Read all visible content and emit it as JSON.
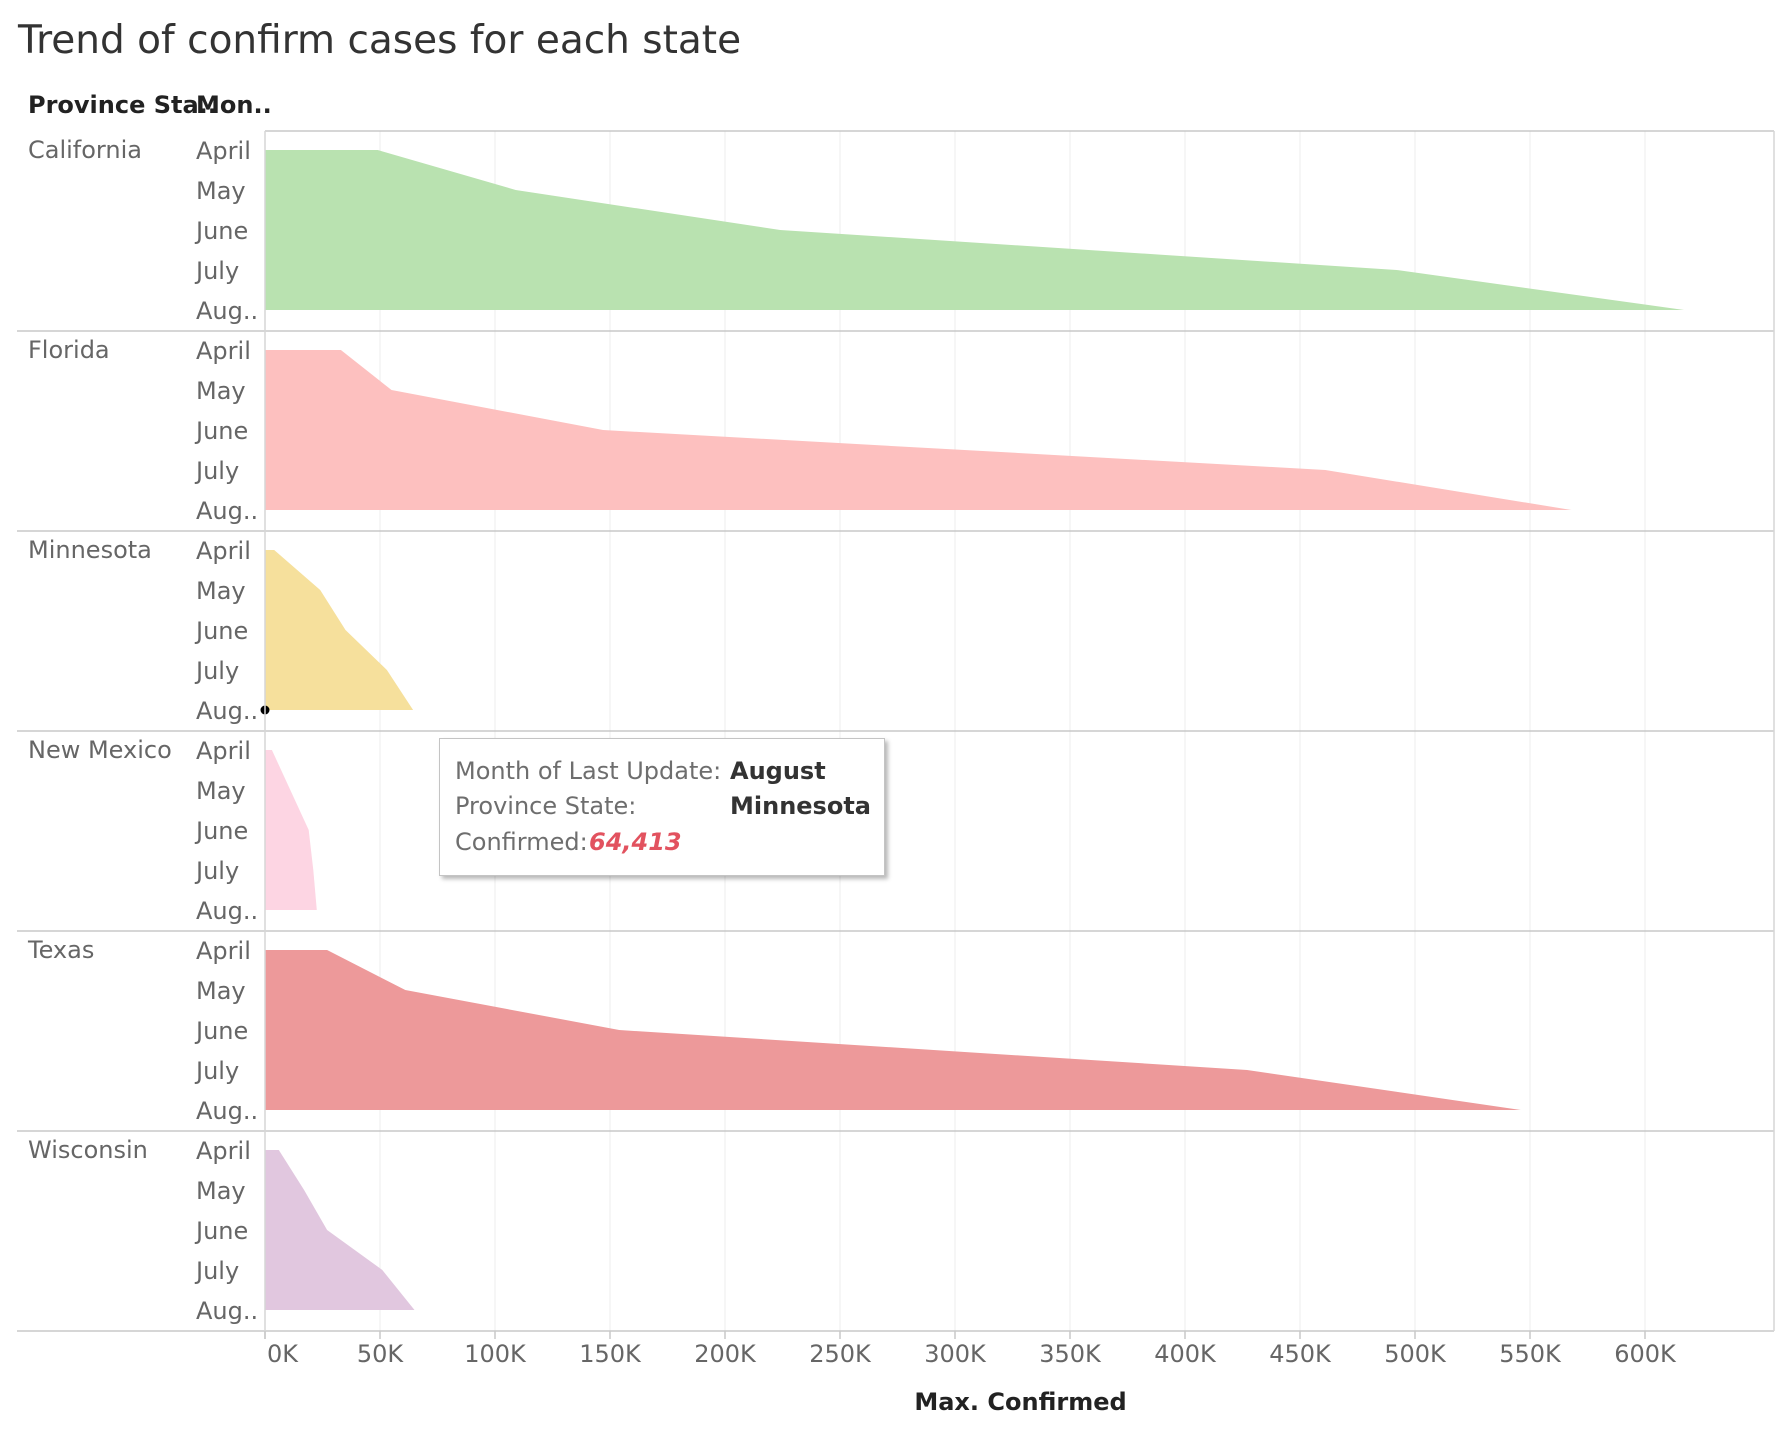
{
  "chart_data": {
    "type": "area",
    "title": "Trend of confirm cases for each state",
    "row_headers": [
      "Province Sta..",
      "Mon.."
    ],
    "xlabel": "Max. Confirmed",
    "xlim": [
      0,
      635000
    ],
    "x_ticks": [
      0,
      50000,
      100000,
      150000,
      200000,
      250000,
      300000,
      350000,
      400000,
      450000,
      500000,
      550000,
      600000
    ],
    "x_tick_labels": [
      "0K",
      "50K",
      "100K",
      "150K",
      "200K",
      "250K",
      "300K",
      "350K",
      "400K",
      "450K",
      "500K",
      "550K",
      "600K"
    ],
    "grid": true,
    "months": [
      "April",
      "May",
      "June",
      "July",
      "Aug.."
    ],
    "series": [
      {
        "name": "California",
        "color": "#b9e2b0",
        "values": [
          49000,
          109000,
          224000,
          492000,
          617000
        ]
      },
      {
        "name": "Florida",
        "color": "#fdc0bf",
        "values": [
          33000,
          55000,
          147000,
          461000,
          568000
        ]
      },
      {
        "name": "Minnesota",
        "color": "#f6e09c",
        "values": [
          4000,
          24000,
          35000,
          53000,
          64413
        ]
      },
      {
        "name": "New Mexico",
        "color": "#fdd5e3",
        "values": [
          3000,
          11000,
          19000,
          21000,
          22500
        ]
      },
      {
        "name": "Texas",
        "color": "#ed999a",
        "values": [
          27000,
          61000,
          154000,
          427000,
          546000
        ]
      },
      {
        "name": "Wisconsin",
        "color": "#e1c7df",
        "values": [
          6000,
          17000,
          27000,
          51000,
          65000
        ]
      }
    ],
    "highlight": {
      "series": "Minnesota",
      "month": "Aug.."
    }
  },
  "tooltip": {
    "month_label": "Month of Last Update:",
    "month_value": "August",
    "state_label": "Province State:",
    "state_value": "Minnesota",
    "confirmed_label": "Confirmed:",
    "confirmed_value": "64,413"
  }
}
